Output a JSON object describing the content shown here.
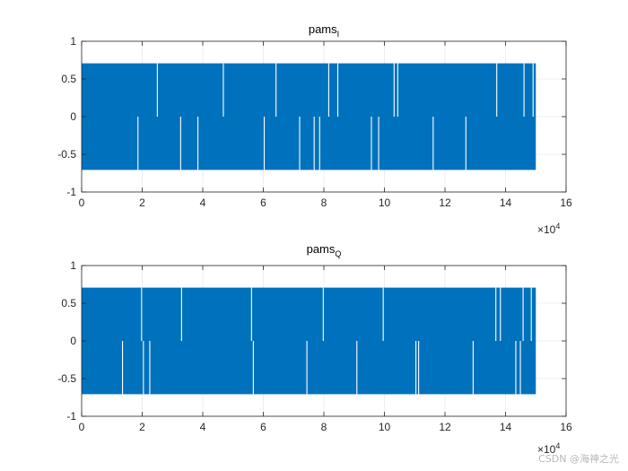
{
  "figure": {
    "background": "#ffffff",
    "axes_color": "#262626",
    "grid_color": "#e0e0e0",
    "series_color": "#0072bd"
  },
  "watermark": "CSDN @海神之光",
  "chart_data": [
    {
      "type": "line",
      "title": "pams",
      "title_subscript": "I",
      "xlim": [
        0,
        160000
      ],
      "ylim": [
        -1,
        1
      ],
      "xticks": [
        0,
        20000,
        40000,
        60000,
        80000,
        100000,
        120000,
        140000,
        160000
      ],
      "xtick_labels": [
        "0",
        "2",
        "4",
        "6",
        "8",
        "10",
        "12",
        "14",
        "16"
      ],
      "yticks": [
        1,
        0.5,
        0,
        -0.5,
        -1
      ],
      "ytick_labels": [
        "1",
        "0.5",
        "0",
        "-0.5",
        "-1"
      ],
      "x_exponent_base": "×10",
      "x_exponent": "4",
      "grid": true,
      "series": [
        {
          "levels": [
            -0.7071,
            0.7071
          ],
          "x_range": [
            0,
            150000
          ],
          "gaps_top_x": [
            25000,
            46800,
            64200,
            81600,
            84600,
            103200,
            104400,
            137100,
            146100,
            149100
          ],
          "gaps_bottom_x": [
            18600,
            32700,
            38400,
            60300,
            72000,
            76800,
            78600,
            95700,
            98100,
            116100,
            126900
          ]
        }
      ]
    },
    {
      "type": "line",
      "title": "pams",
      "title_subscript": "Q",
      "xlim": [
        0,
        160000
      ],
      "ylim": [
        -1,
        1
      ],
      "xticks": [
        0,
        20000,
        40000,
        60000,
        80000,
        100000,
        120000,
        140000,
        160000
      ],
      "xtick_labels": [
        "0",
        "2",
        "4",
        "6",
        "8",
        "10",
        "12",
        "14",
        "16"
      ],
      "yticks": [
        1,
        0.5,
        0,
        -0.5,
        -1
      ],
      "ytick_labels": [
        "1",
        "0.5",
        "0",
        "-0.5",
        "-1"
      ],
      "x_exponent_base": "×10",
      "x_exponent": "4",
      "grid": true,
      "series": [
        {
          "levels": [
            -0.7071,
            0.7071
          ],
          "x_range": [
            0,
            150000
          ],
          "gaps_top_x": [
            19800,
            33000,
            56100,
            79800,
            99600,
            136800,
            138300,
            145800,
            148500
          ],
          "gaps_bottom_x": [
            13500,
            20400,
            22500,
            56700,
            74400,
            90900,
            110400,
            111300,
            129300,
            143400,
            144900
          ]
        }
      ]
    }
  ]
}
